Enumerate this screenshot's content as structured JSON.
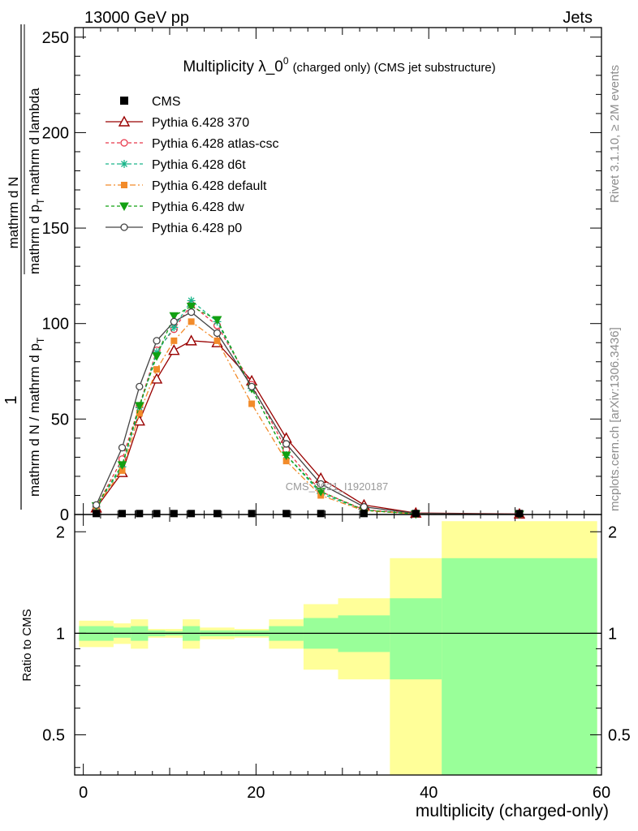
{
  "header": {
    "left": "13000 GeV pp",
    "right": "Jets"
  },
  "side_text": {
    "rivet": "Rivet 3.1.10, ≥ 2M events",
    "mcplots": "mcplots.cern.ch [arXiv:1306.3436]"
  },
  "watermark": "CMS_2021_I1920187",
  "chart_data": {
    "type": "line",
    "title": "Multiplicity λ_0",
    "title_sup": "0",
    "title_suffix": "(charged only) (CMS jet substructure)",
    "xlabel": "multiplicity (charged-only)",
    "ylabel_parts": [
      "1",
      "mathrm d N / mathrm d p",
      "T",
      "mathrm d N",
      "mathrm d p",
      "T",
      "mathrm d lambda"
    ],
    "ratio_ylabel": "Ratio to CMS",
    "xlim": [
      -1,
      60
    ],
    "ylim": [
      0,
      255
    ],
    "ratio_ylim": [
      0.38,
      2.25
    ],
    "x_ticks": [
      0,
      20,
      40,
      60
    ],
    "y_ticks": [
      0,
      50,
      100,
      150,
      200,
      250
    ],
    "ratio_ticks": [
      0.5,
      1,
      2
    ],
    "x": [
      1.5,
      4.5,
      6.5,
      8.5,
      10.5,
      12.5,
      15.5,
      19.5,
      23.5,
      27.5,
      32.5,
      38.5,
      50.5
    ],
    "cms": [
      0.5,
      0.5,
      0.5,
      0.5,
      0.5,
      0.5,
      0.5,
      0.5,
      0.5,
      0.5,
      0.5,
      0.5,
      0.5
    ],
    "series": [
      {
        "name": "Pythia 6.428 370",
        "color": "#990000",
        "marker": "triangle-open",
        "dash": "solid",
        "values": [
          3.5,
          22,
          49,
          71,
          86,
          91,
          90,
          70,
          40,
          19,
          5,
          0.8,
          0.3
        ]
      },
      {
        "name": "Pythia 6.428 atlas-csc",
        "color": "#e8374a",
        "marker": "circle-open",
        "dash": "dashed",
        "values": [
          4,
          29,
          57,
          86,
          97,
          110,
          99,
          68,
          34,
          12,
          2.5,
          0.4,
          0.1
        ]
      },
      {
        "name": "Pythia 6.428 d6t",
        "color": "#1ab58a",
        "marker": "star",
        "dash": "dashed",
        "values": [
          4,
          25,
          56,
          85,
          98,
          112,
          101,
          66,
          31,
          11,
          2.2,
          0.3,
          0.1
        ]
      },
      {
        "name": "Pythia 6.428 default",
        "color": "#f28b2a",
        "marker": "square",
        "dash": "dashdot",
        "values": [
          4.5,
          23,
          53,
          76,
          91,
          101,
          91,
          58,
          28,
          10,
          2,
          0.3,
          0.1
        ]
      },
      {
        "name": "Pythia 6.428 dw",
        "color": "#12a012",
        "marker": "triangle-down",
        "dash": "dashed",
        "values": [
          4.5,
          26,
          57,
          83,
          104,
          109,
          102,
          66,
          31,
          12,
          2.3,
          0.3,
          0.1
        ]
      },
      {
        "name": "Pythia 6.428 p0",
        "color": "#444444",
        "marker": "circle-open",
        "dash": "solid",
        "values": [
          5,
          35,
          67,
          91,
          101,
          106,
          95,
          67,
          37,
          16,
          4,
          0.6,
          0.2
        ]
      }
    ],
    "ratio_bands": [
      {
        "x0": -0.5,
        "x1": 3.5,
        "outer": [
          0.91,
          1.09
        ],
        "inner": [
          0.95,
          1.05
        ]
      },
      {
        "x0": 3.5,
        "x1": 5.5,
        "outer": [
          0.93,
          1.07
        ],
        "inner": [
          0.97,
          1.04
        ]
      },
      {
        "x0": 5.5,
        "x1": 7.5,
        "outer": [
          0.9,
          1.1
        ],
        "inner": [
          0.95,
          1.05
        ]
      },
      {
        "x0": 7.5,
        "x1": 9.5,
        "outer": [
          0.97,
          1.03
        ],
        "inner": [
          0.98,
          1.02
        ]
      },
      {
        "x0": 9.5,
        "x1": 11.5,
        "outer": [
          0.97,
          1.03
        ],
        "inner": [
          0.985,
          1.015
        ]
      },
      {
        "x0": 11.5,
        "x1": 13.5,
        "outer": [
          0.9,
          1.1
        ],
        "inner": [
          0.95,
          1.05
        ]
      },
      {
        "x0": 13.5,
        "x1": 17.5,
        "outer": [
          0.96,
          1.04
        ],
        "inner": [
          0.98,
          1.02
        ]
      },
      {
        "x0": 17.5,
        "x1": 21.5,
        "outer": [
          0.97,
          1.03
        ],
        "inner": [
          0.98,
          1.02
        ]
      },
      {
        "x0": 21.5,
        "x1": 25.5,
        "outer": [
          0.9,
          1.1
        ],
        "inner": [
          0.95,
          1.05
        ]
      },
      {
        "x0": 25.5,
        "x1": 29.5,
        "outer": [
          0.78,
          1.22
        ],
        "inner": [
          0.9,
          1.11
        ]
      },
      {
        "x0": 29.5,
        "x1": 35.5,
        "outer": [
          0.73,
          1.27
        ],
        "inner": [
          0.88,
          1.13
        ]
      },
      {
        "x0": 35.5,
        "x1": 41.5,
        "outer": [
          0.38,
          1.67
        ],
        "inner": [
          0.73,
          1.27
        ]
      },
      {
        "x0": 41.5,
        "x1": 59.5,
        "outer": [
          0.38,
          2.15
        ],
        "inner": [
          0.38,
          1.67
        ]
      }
    ]
  }
}
